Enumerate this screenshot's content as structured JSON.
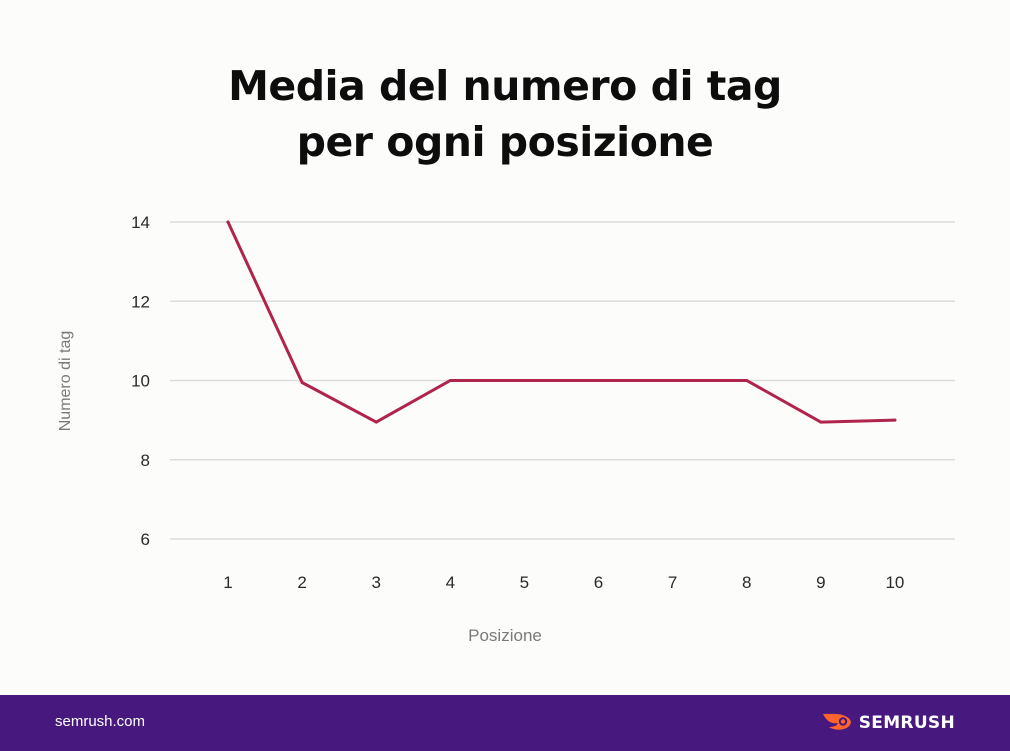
{
  "title_lines": [
    "Media del numero di tag",
    "per ogni posizione"
  ],
  "footer": {
    "site": "semrush.com",
    "brand_name": "SEMRUSH",
    "brand_icon": "semrush-fire-logo",
    "background_color": "#47197f",
    "logo_color": "#ff642d"
  },
  "chart_data": {
    "type": "line",
    "title": "Media del numero di tag per ogni posizione",
    "xlabel": "Posizione",
    "ylabel": "Numero di tag",
    "categories": [
      "1",
      "2",
      "3",
      "4",
      "5",
      "6",
      "7",
      "8",
      "9",
      "10"
    ],
    "series": [
      {
        "values": [
          14,
          9.95,
          8.95,
          10,
          10,
          10,
          10,
          10,
          8.95,
          9
        ]
      }
    ],
    "ylim": [
      6,
      14
    ],
    "yticks": [
      "6",
      "8",
      "10",
      "12",
      "14"
    ],
    "grid": true,
    "line_color": "#b0244b"
  }
}
